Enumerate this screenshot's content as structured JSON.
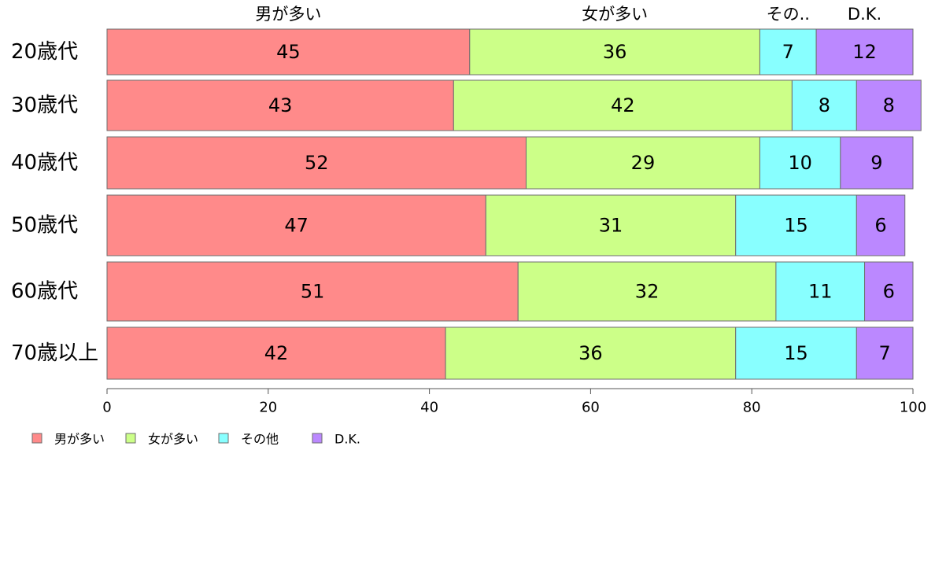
{
  "chart_data": {
    "type": "bar",
    "orientation": "horizontal",
    "stacked": true,
    "categories": [
      "20歳代",
      "30歳代",
      "40歳代",
      "50歳代",
      "60歳代",
      "70歳以上"
    ],
    "series": [
      {
        "name": "男が多い",
        "header": "男が多い",
        "color": "#ff8a8a",
        "values": [
          45,
          43,
          52,
          47,
          51,
          42
        ]
      },
      {
        "name": "女が多い",
        "header": "女が多い",
        "color": "#ccff88",
        "values": [
          36,
          42,
          29,
          31,
          32,
          36
        ]
      },
      {
        "name": "その他",
        "header": "その..",
        "color": "#88ffff",
        "values": [
          7,
          8,
          10,
          15,
          11,
          15
        ]
      },
      {
        "name": "D.K.",
        "header": "D.K.",
        "color": "#bb88ff",
        "values": [
          12,
          8,
          9,
          6,
          6,
          7
        ]
      }
    ],
    "xlim": [
      0,
      100
    ],
    "x_ticks": [
      "0",
      "20",
      "40",
      "60",
      "80",
      "100"
    ],
    "legend_position": "bottom-left",
    "grid": false
  }
}
